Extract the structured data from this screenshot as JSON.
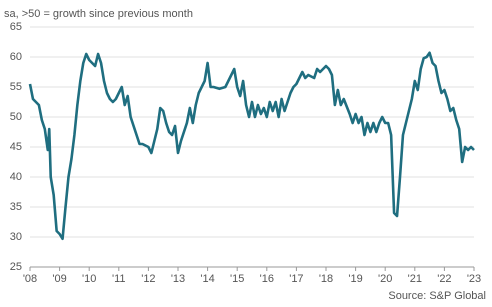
{
  "chart_data": {
    "type": "line",
    "subtitle": "sa, >50 = growth since previous month",
    "source": "Source: S&P Global",
    "x": [
      2008.0,
      2008.1,
      2008.3,
      2008.4,
      2008.5,
      2008.6,
      2008.65,
      2008.7,
      2008.8,
      2008.9,
      2009.0,
      2009.1,
      2009.2,
      2009.3,
      2009.4,
      2009.5,
      2009.6,
      2009.7,
      2009.8,
      2009.9,
      2010.0,
      2010.1,
      2010.2,
      2010.3,
      2010.4,
      2010.5,
      2010.6,
      2010.7,
      2010.8,
      2010.9,
      2011.0,
      2011.1,
      2011.2,
      2011.3,
      2011.4,
      2011.5,
      2011.6,
      2011.7,
      2011.8,
      2012.0,
      2012.1,
      2012.2,
      2012.3,
      2012.4,
      2012.5,
      2012.6,
      2012.7,
      2012.8,
      2012.9,
      2013.0,
      2013.1,
      2013.3,
      2013.4,
      2013.5,
      2013.6,
      2013.7,
      2013.8,
      2013.9,
      2014.0,
      2014.1,
      2014.2,
      2014.4,
      2014.6,
      2014.7,
      2014.8,
      2014.9,
      2015.0,
      2015.1,
      2015.2,
      2015.3,
      2015.4,
      2015.5,
      2015.6,
      2015.7,
      2015.8,
      2015.9,
      2016.0,
      2016.1,
      2016.2,
      2016.3,
      2016.4,
      2016.5,
      2016.6,
      2016.7,
      2016.8,
      2016.9,
      2017.0,
      2017.2,
      2017.3,
      2017.4,
      2017.6,
      2017.7,
      2017.8,
      2018.0,
      2018.1,
      2018.2,
      2018.3,
      2018.4,
      2018.5,
      2018.6,
      2018.8,
      2018.9,
      2019.0,
      2019.1,
      2019.2,
      2019.3,
      2019.4,
      2019.5,
      2019.6,
      2019.7,
      2019.8,
      2019.9,
      2020.0,
      2020.1,
      2020.2,
      2020.3,
      2020.4,
      2020.5,
      2020.6,
      2020.7,
      2020.8,
      2020.9,
      2021.0,
      2021.1,
      2021.2,
      2021.3,
      2021.4,
      2021.5,
      2021.6,
      2021.7,
      2021.8,
      2021.9,
      2022.0,
      2022.1,
      2022.2,
      2022.3,
      2022.4,
      2022.5,
      2022.6,
      2022.7,
      2022.8,
      2022.9,
      2023.0
    ],
    "series": [
      {
        "color": "#1f6e80",
        "values": [
          55.5,
          53,
          52,
          49.5,
          48,
          44.5,
          48,
          40,
          37,
          31,
          30.5,
          29.7,
          35,
          40,
          43,
          47,
          52,
          56,
          59,
          60.5,
          59.5,
          59,
          58.5,
          60.5,
          59,
          56,
          54,
          53,
          52.5,
          53,
          54,
          55,
          52,
          53.5,
          50,
          48.5,
          47,
          45.5,
          45.5,
          45,
          44,
          46,
          48,
          51.5,
          51,
          49,
          47.5,
          47,
          48.5,
          44,
          46,
          49,
          51.5,
          49,
          52,
          54,
          55,
          56,
          59,
          55,
          55,
          54.7,
          55,
          56,
          57,
          58,
          55,
          53.5,
          56,
          52,
          50,
          52.5,
          50,
          52,
          50.5,
          51.5,
          50,
          52.5,
          51,
          52.5,
          50,
          53,
          51,
          52.5,
          54,
          55,
          55.5,
          57.5,
          56.5,
          57,
          56.5,
          58,
          57.5,
          58.5,
          58,
          57,
          52,
          54.5,
          52,
          53,
          50.5,
          49,
          50.5,
          49,
          50,
          47,
          49,
          47.5,
          49,
          47.5,
          49,
          50,
          49,
          49,
          47,
          34,
          33.5,
          40,
          47,
          49,
          51,
          53,
          56,
          54.5,
          58,
          59.8,
          60,
          60.7,
          59,
          58.5,
          56,
          54,
          54.5,
          53,
          51,
          51.5,
          49.5,
          48,
          42.5,
          45,
          44.5,
          45,
          44.5
        ]
      }
    ],
    "xlim": [
      2008,
      2023
    ],
    "xticks": [
      {
        "value": 2008,
        "label": "'08"
      },
      {
        "value": 2009,
        "label": "'09"
      },
      {
        "value": 2010,
        "label": "'10"
      },
      {
        "value": 2011,
        "label": "'11"
      },
      {
        "value": 2012,
        "label": "'12"
      },
      {
        "value": 2013,
        "label": "'13"
      },
      {
        "value": 2014,
        "label": "'14"
      },
      {
        "value": 2015,
        "label": "'15"
      },
      {
        "value": 2016,
        "label": "'16"
      },
      {
        "value": 2017,
        "label": "'17"
      },
      {
        "value": 2018,
        "label": "'18"
      },
      {
        "value": 2019,
        "label": "'19"
      },
      {
        "value": 2020,
        "label": "'20"
      },
      {
        "value": 2021,
        "label": "'21"
      },
      {
        "value": 2022,
        "label": "'22"
      },
      {
        "value": 2023,
        "label": "'23"
      }
    ],
    "ylim": [
      25,
      65
    ],
    "yticks": [
      25,
      30,
      35,
      40,
      45,
      50,
      55,
      60,
      65
    ],
    "grid": true
  }
}
